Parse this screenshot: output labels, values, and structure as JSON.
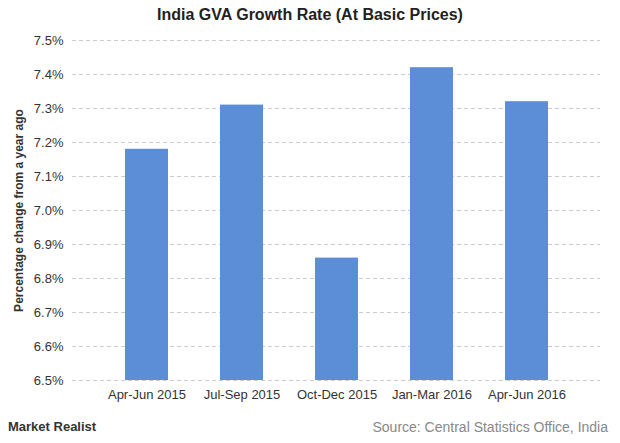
{
  "chart_data": {
    "type": "bar",
    "title": "India GVA Growth Rate (At Basic Prices)",
    "y_label": "Percentage change from a year ago",
    "categories": [
      "Apr-Jun 2015",
      "Jul-Sep 2015",
      "Oct-Dec 2015",
      "Jan-Mar 2016",
      "Apr-Jun 2016"
    ],
    "values": [
      7.18,
      7.31,
      6.86,
      7.42,
      7.32
    ],
    "color": "#5b8ed6",
    "ylim": [
      6.5,
      7.5
    ],
    "yticks": [
      {
        "value": 6.5,
        "label": "6.5%"
      },
      {
        "value": 6.6,
        "label": "6.6%"
      },
      {
        "value": 6.7,
        "label": "6.7%"
      },
      {
        "value": 6.8,
        "label": "6.8%"
      },
      {
        "value": 6.9,
        "label": "6.9%"
      },
      {
        "value": 7.0,
        "label": "7.0%"
      },
      {
        "value": 7.1,
        "label": "7.1%"
      },
      {
        "value": 7.2,
        "label": "7.2%"
      },
      {
        "value": 7.3,
        "label": "7.3%"
      },
      {
        "value": 7.4,
        "label": "7.4%"
      },
      {
        "value": 7.5,
        "label": "7.5%"
      }
    ],
    "grid": true,
    "source": "Source: Central Statistics Office, India",
    "brand": "Market Realist"
  }
}
